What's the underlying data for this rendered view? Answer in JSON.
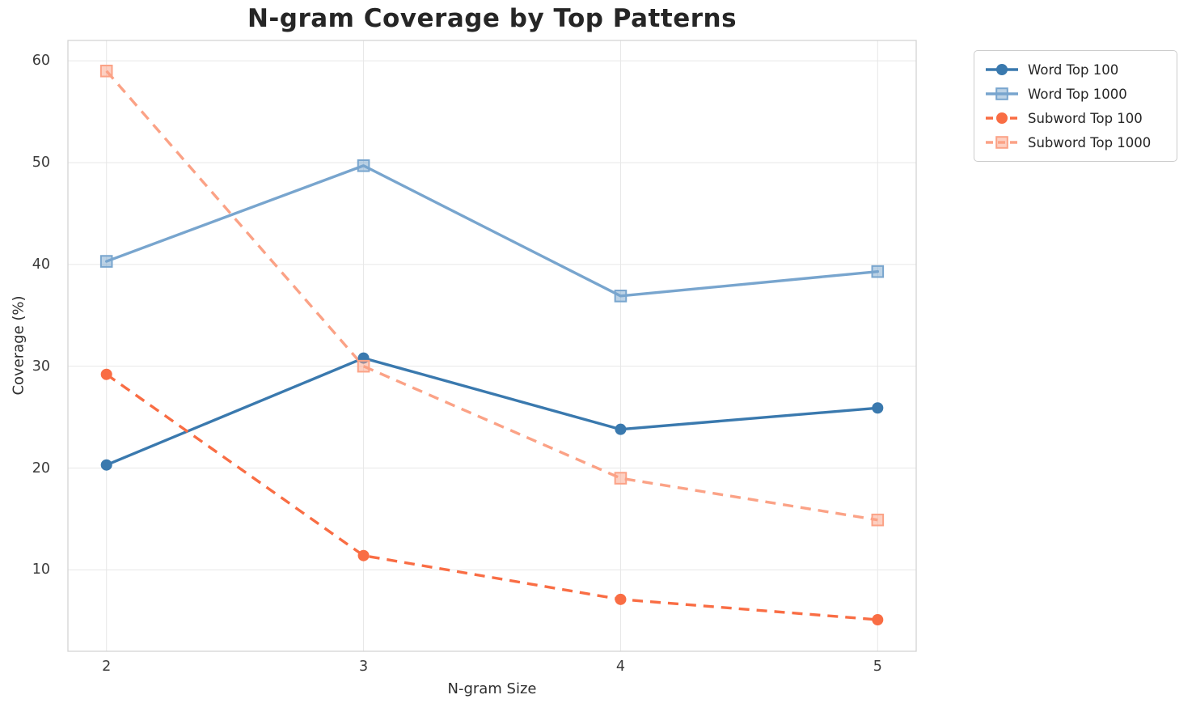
{
  "chart_data": {
    "type": "line",
    "title": "N-gram Coverage by Top Patterns",
    "xlabel": "N-gram Size",
    "ylabel": "Coverage (%)",
    "x": [
      2,
      3,
      4,
      5
    ],
    "xtick_labels": [
      "2",
      "3",
      "4",
      "5"
    ],
    "yticks": [
      10,
      20,
      30,
      40,
      50,
      60
    ],
    "xlim": [
      1.85,
      5.15
    ],
    "ylim": [
      2,
      62
    ],
    "grid": true,
    "legend_position": "upper right, outside plot area",
    "series": [
      {
        "name": "Word Top 100",
        "values": [
          20.3,
          30.8,
          23.8,
          25.9
        ],
        "color": "#3a79ae",
        "marker": "circle",
        "line_style": "solid"
      },
      {
        "name": "Word Top 1000",
        "values": [
          40.3,
          49.7,
          36.9,
          39.3
        ],
        "color": "#78a5ce",
        "marker": "square",
        "line_style": "solid"
      },
      {
        "name": "Subword Top 100",
        "values": [
          29.2,
          11.4,
          7.1,
          5.1
        ],
        "color": "#f96d44",
        "marker": "circle",
        "line_style": "dashed"
      },
      {
        "name": "Subword Top 1000",
        "values": [
          59.0,
          30.0,
          19.0,
          14.9
        ],
        "color": "#fba286",
        "marker": "square",
        "line_style": "dashed"
      }
    ],
    "colors": {
      "title_text": "#262626",
      "axis_text": "#2e2e2e",
      "tick_text": "#3b3b3b",
      "grid": "#e7e7e7",
      "spine": "#d4d4d4",
      "background": "#ffffff"
    }
  }
}
